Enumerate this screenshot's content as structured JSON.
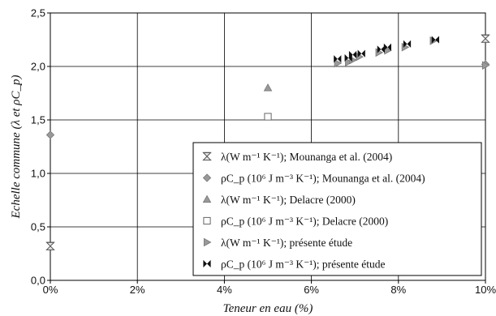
{
  "chart_data": {
    "type": "scatter",
    "xlabel": "Teneur en eau (%)",
    "ylabel": "Echelle commune (λ et ρC_p)",
    "xlim": [
      0,
      10
    ],
    "ylim": [
      0,
      2.5
    ],
    "x_ticks": [
      0,
      2,
      4,
      6,
      8,
      10
    ],
    "x_tick_labels": [
      "0%",
      "2%",
      "4%",
      "6%",
      "8%",
      "10%"
    ],
    "y_ticks": [
      0,
      0.5,
      1.0,
      1.5,
      2.0,
      2.5
    ],
    "y_tick_labels": [
      "0,0",
      "0,5",
      "1,0",
      "1,5",
      "2,0",
      "2,5"
    ],
    "grid": true,
    "legend_position": "bottom-right",
    "series": [
      {
        "name": "λ(W m⁻¹ K⁻¹); Mounanga et al. (2004)",
        "marker": "hourglass",
        "color": "#888888",
        "points": [
          [
            0,
            0.32
          ],
          [
            10,
            2.26
          ]
        ]
      },
      {
        "name": "ρC_p (10⁶ J m⁻³ K⁻¹); Mounanga et al. (2004)",
        "marker": "diamond",
        "color": "#999999",
        "points": [
          [
            0,
            1.36
          ],
          [
            10,
            2.02
          ]
        ]
      },
      {
        "name": "λ(W m⁻¹ K⁻¹); Delacre (2000)",
        "marker": "triangle-up",
        "color": "#999999",
        "points": [
          [
            5,
            1.8
          ]
        ]
      },
      {
        "name": "ρC_p (10⁶ J m⁻³ K⁻¹); Delacre (2000)",
        "marker": "square-open",
        "color": "#666666",
        "points": [
          [
            5,
            1.53
          ]
        ]
      },
      {
        "name": "λ(W m⁻¹ K⁻¹); présente étude",
        "marker": "triangle-right",
        "color": "#999999",
        "points": [
          [
            6.6,
            2.03
          ],
          [
            6.85,
            2.04
          ],
          [
            6.95,
            2.06
          ],
          [
            7.1,
            2.09
          ],
          [
            7.55,
            2.13
          ],
          [
            7.75,
            2.15
          ],
          [
            8.15,
            2.18
          ],
          [
            8.8,
            2.24
          ],
          [
            10,
            2.01
          ]
        ]
      },
      {
        "name": "ρC_p (10⁶ J m⁻³ K⁻¹); présente étude",
        "marker": "bowtie",
        "color": "#111111",
        "points": [
          [
            6.6,
            2.07
          ],
          [
            6.85,
            2.08
          ],
          [
            6.95,
            2.11
          ],
          [
            7.15,
            2.12
          ],
          [
            7.6,
            2.16
          ],
          [
            7.75,
            2.18
          ],
          [
            8.2,
            2.21
          ],
          [
            8.85,
            2.25
          ]
        ]
      }
    ]
  },
  "colors": {
    "axis": "#000000",
    "grid": "#000000",
    "background": "#ffffff"
  }
}
